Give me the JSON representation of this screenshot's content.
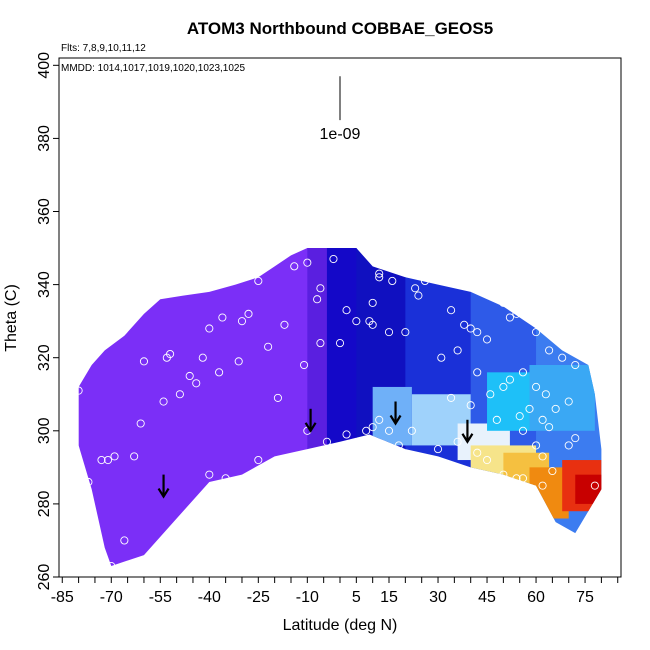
{
  "chart_data": {
    "type": "heatmap",
    "title": "ATOM3 Northbound COBBAE_GEOS5",
    "notes": [
      "Flts: 7,8,9,10,11,12",
      "MMDD: 1014,1017,1019,1020,1023,1025"
    ],
    "xlabel": "Latitude (deg N)",
    "ylabel": "Theta (C)",
    "xlim": [
      -86,
      86
    ],
    "ylim": [
      260,
      402
    ],
    "x_ticks": [
      -85,
      -70,
      -55,
      -40,
      -25,
      -10,
      5,
      15,
      30,
      45,
      60,
      75
    ],
    "y_ticks": [
      260,
      280,
      300,
      320,
      340,
      360,
      380,
      400
    ],
    "scale_bar": {
      "label": "1e-09",
      "lat": 0,
      "theta_top": 397,
      "theta_bottom": 385
    },
    "upper_boundary": [
      [
        -80,
        312
      ],
      [
        -76,
        318
      ],
      [
        -72,
        322
      ],
      [
        -66,
        326
      ],
      [
        -60,
        332
      ],
      [
        -55,
        336
      ],
      [
        -48,
        337
      ],
      [
        -40,
        338
      ],
      [
        -32,
        340
      ],
      [
        -25,
        342
      ],
      [
        -20,
        345
      ],
      [
        -15,
        348
      ],
      [
        -10,
        350
      ],
      [
        0,
        350
      ],
      [
        5,
        350
      ],
      [
        10,
        345
      ],
      [
        20,
        342
      ],
      [
        30,
        340
      ],
      [
        40,
        338
      ],
      [
        50,
        334
      ],
      [
        60,
        328
      ],
      [
        68,
        322
      ],
      [
        76,
        318
      ],
      [
        78,
        310
      ],
      [
        80,
        295
      ],
      [
        80,
        284
      ]
    ],
    "lower_boundary": [
      [
        -80,
        296
      ],
      [
        -78,
        290
      ],
      [
        -76,
        284
      ],
      [
        -74,
        276
      ],
      [
        -72,
        268
      ],
      [
        -70,
        263
      ],
      [
        -60,
        266
      ],
      [
        -50,
        276
      ],
      [
        -40,
        286
      ],
      [
        -30,
        288
      ],
      [
        -20,
        293
      ],
      [
        -10,
        295
      ],
      [
        0,
        297
      ],
      [
        9,
        299
      ],
      [
        20,
        295
      ],
      [
        30,
        293
      ],
      [
        40,
        290
      ],
      [
        50,
        288
      ],
      [
        60,
        285
      ],
      [
        66,
        275
      ],
      [
        72,
        272
      ],
      [
        76,
        278
      ],
      [
        80,
        284
      ]
    ],
    "colorbands": [
      {
        "lat": [
          -80,
          -10
        ],
        "color": "#7b2ff7"
      },
      {
        "lat": [
          -10,
          -4
        ],
        "color": "#5a1fe0"
      },
      {
        "lat": [
          -4,
          5
        ],
        "color": "#1408c8"
      },
      {
        "lat": [
          5,
          20
        ],
        "color": "#1010c0"
      },
      {
        "lat": [
          20,
          40
        ],
        "color": "#1a30d8"
      },
      {
        "lat": [
          40,
          60
        ],
        "color": "#2e5ae8"
      },
      {
        "lat": [
          60,
          80
        ],
        "color": "#3c7cf0"
      }
    ],
    "patches": [
      {
        "lat": [
          10,
          22
        ],
        "theta": [
          296,
          312
        ],
        "color": "#6fb0f8"
      },
      {
        "lat": [
          22,
          40
        ],
        "theta": [
          296,
          310
        ],
        "color": "#9fd2fb"
      },
      {
        "lat": [
          36,
          52
        ],
        "theta": [
          292,
          302
        ],
        "color": "#e8f2fc"
      },
      {
        "lat": [
          45,
          60
        ],
        "theta": [
          300,
          316
        ],
        "color": "#1ec0f8"
      },
      {
        "lat": [
          58,
          78
        ],
        "theta": [
          300,
          318
        ],
        "color": "#3aa8f4"
      },
      {
        "lat": [
          40,
          60
        ],
        "theta": [
          286,
          296
        ],
        "color": "#f6e48a"
      },
      {
        "lat": [
          50,
          64
        ],
        "theta": [
          284,
          294
        ],
        "color": "#f5c040"
      },
      {
        "lat": [
          58,
          70
        ],
        "theta": [
          276,
          290
        ],
        "color": "#f08a10"
      },
      {
        "lat": [
          68,
          80
        ],
        "theta": [
          278,
          292
        ],
        "color": "#e83010"
      },
      {
        "lat": [
          72,
          80
        ],
        "theta": [
          280,
          288
        ],
        "color": "#c80000"
      }
    ],
    "points": [
      [
        -80,
        311
      ],
      [
        -81,
        295
      ],
      [
        -77,
        286
      ],
      [
        -73,
        292
      ],
      [
        -71,
        292
      ],
      [
        -69,
        293
      ],
      [
        -70,
        263
      ],
      [
        -66,
        270
      ],
      [
        -61,
        302
      ],
      [
        -63,
        293
      ],
      [
        -60,
        319
      ],
      [
        -52,
        321
      ],
      [
        -53,
        320
      ],
      [
        -54,
        308
      ],
      [
        -49,
        310
      ],
      [
        -46,
        315
      ],
      [
        -44,
        313
      ],
      [
        -42,
        320
      ],
      [
        -37,
        316
      ],
      [
        -40,
        328
      ],
      [
        -36,
        331
      ],
      [
        -30,
        330
      ],
      [
        -28,
        332
      ],
      [
        -25,
        341
      ],
      [
        -22,
        323
      ],
      [
        -31,
        319
      ],
      [
        -35,
        287
      ],
      [
        -40,
        288
      ],
      [
        -25,
        292
      ],
      [
        -17,
        329
      ],
      [
        -14,
        345
      ],
      [
        -10,
        346
      ],
      [
        -7,
        336
      ],
      [
        -6,
        339
      ],
      [
        -11,
        318
      ],
      [
        -6,
        324
      ],
      [
        -2,
        347
      ],
      [
        0,
        324
      ],
      [
        2,
        333
      ],
      [
        5,
        330
      ],
      [
        9,
        330
      ],
      [
        10,
        329
      ],
      [
        10,
        335
      ],
      [
        12,
        343
      ],
      [
        12,
        342
      ],
      [
        13,
        347
      ],
      [
        16,
        341
      ],
      [
        15,
        327
      ],
      [
        20,
        327
      ],
      [
        23,
        339
      ],
      [
        24,
        337
      ],
      [
        26,
        341
      ],
      [
        34,
        333
      ],
      [
        38,
        329
      ],
      [
        40,
        328
      ],
      [
        42,
        327
      ],
      [
        45,
        325
      ],
      [
        50,
        335
      ],
      [
        52,
        331
      ],
      [
        54,
        332
      ],
      [
        60,
        327
      ],
      [
        64,
        322
      ],
      [
        68,
        320
      ],
      [
        72,
        318
      ],
      [
        31,
        320
      ],
      [
        36,
        322
      ],
      [
        42,
        316
      ],
      [
        50,
        312
      ],
      [
        52,
        314
      ],
      [
        56,
        316
      ],
      [
        60,
        312
      ],
      [
        63,
        310
      ],
      [
        66,
        306
      ],
      [
        70,
        308
      ],
      [
        55,
        304
      ],
      [
        58,
        306
      ],
      [
        62,
        303
      ],
      [
        64,
        301
      ],
      [
        46,
        310
      ],
      [
        34,
        309
      ],
      [
        40,
        307
      ],
      [
        36,
        297
      ],
      [
        30,
        295
      ],
      [
        22,
        300
      ],
      [
        15,
        300
      ],
      [
        10,
        301
      ],
      [
        12,
        303
      ],
      [
        18,
        296
      ],
      [
        48,
        303
      ],
      [
        56,
        300
      ],
      [
        60,
        296
      ],
      [
        62,
        293
      ],
      [
        65,
        289
      ],
      [
        62,
        285
      ],
      [
        58,
        284
      ],
      [
        50,
        288
      ],
      [
        51,
        286
      ],
      [
        54,
        287
      ],
      [
        56,
        287
      ],
      [
        45,
        292
      ],
      [
        42,
        294
      ],
      [
        70,
        296
      ],
      [
        72,
        298
      ],
      [
        78,
        285
      ],
      [
        -19,
        309
      ],
      [
        -10,
        300
      ],
      [
        -4,
        297
      ],
      [
        2,
        299
      ],
      [
        8,
        300
      ]
    ],
    "arrows": [
      [
        -54,
        282
      ],
      [
        -9,
        300
      ],
      [
        17,
        302
      ],
      [
        39,
        297
      ]
    ]
  }
}
